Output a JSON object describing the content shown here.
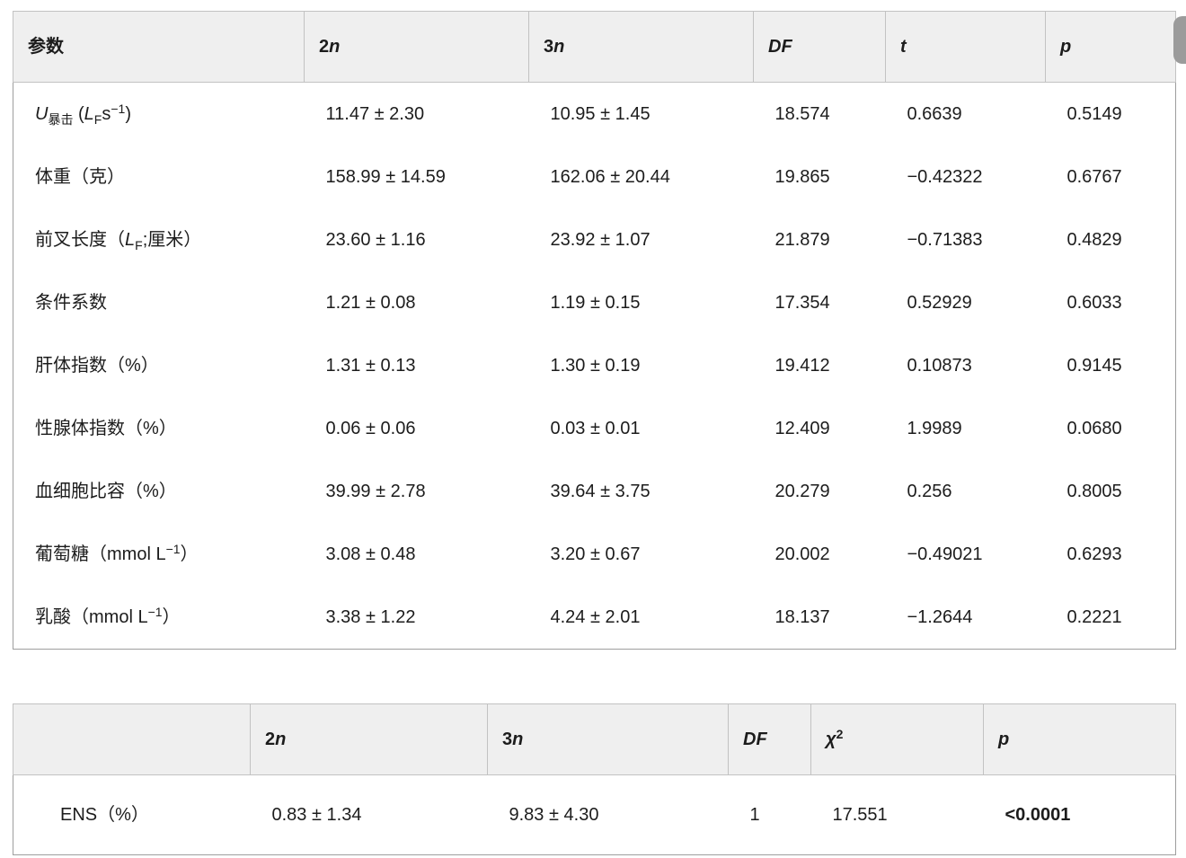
{
  "colors": {
    "header_bg": "#efefef",
    "header_border": "#c2c2c2",
    "table_border": "#9e9e9e",
    "scrollbar_thumb": "#9b9b9b",
    "text": "#1c1c1c"
  },
  "scrollbar": {
    "visible": true,
    "position": "top-right"
  },
  "table1": {
    "headers": [
      "参数",
      "2<i>n</i>",
      "3<i>n</i>",
      "<i>DF</i>",
      "<i>t</i>",
      "<i>p</i>"
    ],
    "rows": [
      {
        "param": "<i>U</i><sub>暴击</sub> (<i>L</i><sub>F</sub>s<sup>−1</sup>)",
        "values": [
          "11.47 ± 2.30",
          "10.95 ± 1.45",
          "18.574",
          "0.6639",
          "0.5149"
        ]
      },
      {
        "param": "体重（克）",
        "values": [
          "158.99 ± 14.59",
          "162.06 ± 20.44",
          "19.865",
          "−0.42322",
          "0.6767"
        ]
      },
      {
        "param": "前叉长度（<i>L</i><sub>F</sub>;厘米）",
        "values": [
          "23.60 ± 1.16",
          "23.92 ± 1.07",
          "21.879",
          "−0.71383",
          "0.4829"
        ]
      },
      {
        "param": "条件系数",
        "values": [
          "1.21 ± 0.08",
          "1.19 ± 0.15",
          "17.354",
          "0.52929",
          "0.6033"
        ]
      },
      {
        "param": "肝体指数（%）",
        "values": [
          "1.31 ± 0.13",
          "1.30 ± 0.19",
          "19.412",
          "0.10873",
          "0.9145"
        ]
      },
      {
        "param": "性腺体指数（%）",
        "values": [
          "0.06 ± 0.06",
          "0.03 ± 0.01",
          "12.409",
          "1.9989",
          "0.0680"
        ]
      },
      {
        "param": "血细胞比容（%）",
        "values": [
          "39.99 ± 2.78",
          "39.64 ± 3.75",
          "20.279",
          "0.256",
          "0.8005"
        ]
      },
      {
        "param": "葡萄糖（mmol L<sup>−1</sup>）",
        "values": [
          "3.08 ± 0.48",
          "3.20 ± 0.67",
          "20.002",
          "−0.49021",
          "0.6293"
        ]
      },
      {
        "param": "乳酸（mmol L<sup>−1</sup>）",
        "values": [
          "3.38 ± 1.22",
          "4.24 ± 2.01",
          "18.137",
          "−1.2644",
          "0.2221"
        ]
      }
    ]
  },
  "table2": {
    "headers": [
      "",
      "2<i>n</i>",
      "3<i>n</i>",
      "<i>DF</i>",
      "<i>χ</i><sup>2</sup>",
      "<i>p</i>"
    ],
    "rows": [
      {
        "param": "ENS（%）",
        "values": [
          "0.83 ± 1.34",
          "9.83 ± 4.30",
          "1",
          "17.551",
          "<b>&lt;0.0001</b>"
        ]
      }
    ]
  }
}
